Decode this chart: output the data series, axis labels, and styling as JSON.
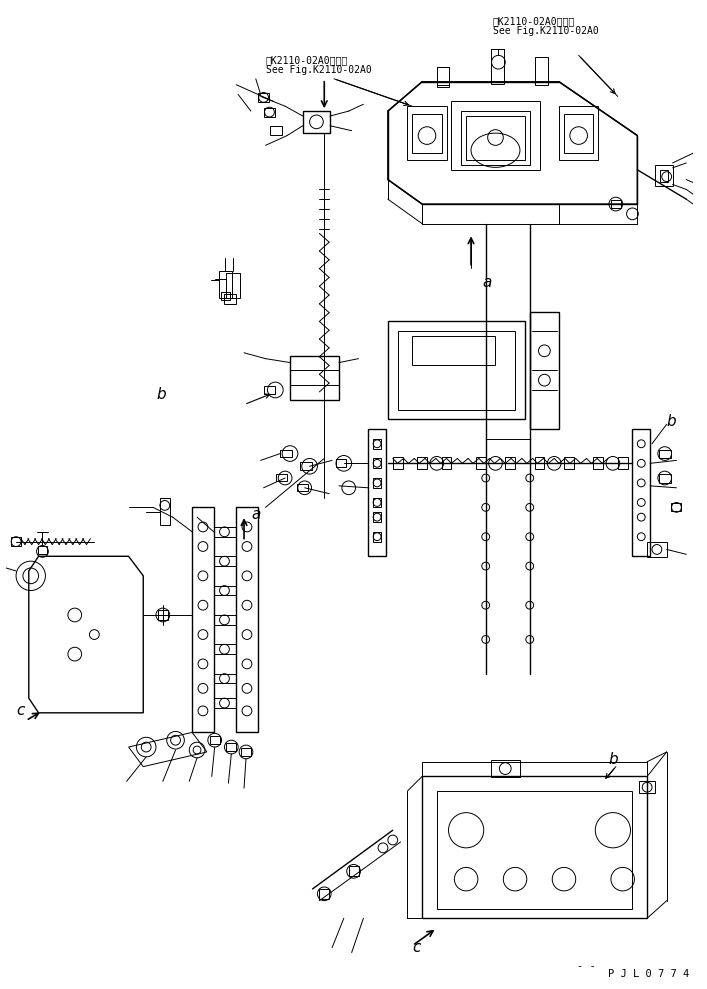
{
  "bg_color": "#ffffff",
  "fig_width": 7.07,
  "fig_height": 9.89,
  "dpi": 100,
  "top_right_ref1": "第K2110-02A0図参照",
  "top_right_ref2": "See Fig.K2110-02A0",
  "top_mid_ref1": "第K2110-02A0図参照",
  "top_mid_ref2": "See Fig.K2110-02A0",
  "bottom_label": "P J L 0 7 7 4",
  "dash_label": "- -"
}
